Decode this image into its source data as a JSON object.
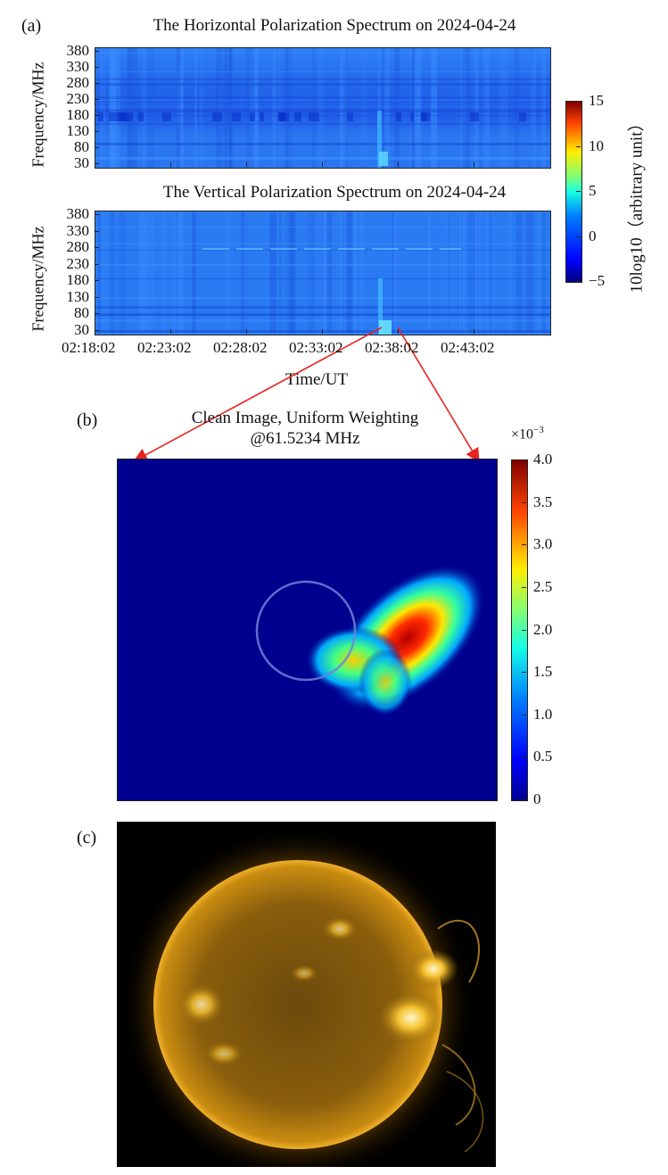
{
  "panel_labels": {
    "a": "(a)",
    "b": "(b)",
    "c": "(c)"
  },
  "panel_a": {
    "top_title": "The Horizontal Polarization Spectrum on 2024-04-24",
    "bottom_title": "The Vertical Polarization Spectrum on 2024-04-24",
    "ylabel": "Frequency/MHz",
    "xlabel": "Time/UT",
    "yticks": [
      "380",
      "330",
      "280",
      "230",
      "180",
      "130",
      "80",
      "30"
    ],
    "xticks": [
      "02:18:02",
      "02:23:02",
      "02:28:02",
      "02:33:02",
      "02:38:02",
      "02:43:02"
    ],
    "colorbar_label": "10log10（arbitrary unit）",
    "colorbar_ticks": [
      "15",
      "10",
      "5",
      "0",
      "−5"
    ],
    "colors": {
      "low": "#00008f",
      "mid": "#1e6ff0",
      "high": "#7f0000"
    }
  },
  "panel_b": {
    "title_line1": "Clean Image, Uniform Weighting",
    "title_line2": "@61.5234 MHz",
    "colorbar_multiplier": "×10",
    "colorbar_exponent": "−3",
    "colorbar_ticks": [
      "4.0",
      "3.5",
      "3.0",
      "2.5",
      "2.0",
      "1.5",
      "1.0",
      "0.5",
      "0"
    ],
    "background_color": "#00008f"
  },
  "chart_data": [
    {
      "type": "heatmap",
      "title": "The Horizontal Polarization Spectrum on 2024-04-24",
      "ylabel": "Frequency/MHz",
      "y_ticks": [
        30,
        80,
        130,
        180,
        230,
        280,
        330,
        380
      ],
      "x_ticks": [
        "02:18:02",
        "02:23:02",
        "02:28:02",
        "02:33:02",
        "02:38:02",
        "02:43:02"
      ],
      "colorbar_range": [
        -5,
        15
      ],
      "colorbar_label": "10log10（arbitrary unit）"
    },
    {
      "type": "heatmap",
      "title": "The Vertical Polarization Spectrum on 2024-04-24",
      "xlabel": "Time/UT",
      "ylabel": "Frequency/MHz",
      "y_ticks": [
        30,
        80,
        130,
        180,
        230,
        280,
        330,
        380
      ],
      "x_ticks": [
        "02:18:02",
        "02:23:02",
        "02:28:02",
        "02:33:02",
        "02:38:02",
        "02:43:02"
      ],
      "colorbar_range": [
        -5,
        15
      ]
    },
    {
      "type": "heatmap",
      "title": "Clean Image, Uniform Weighting @61.5234 MHz",
      "colorbar_range": [
        0,
        0.004
      ],
      "colorbar_ticks": [
        0,
        0.5,
        1.0,
        1.5,
        2.0,
        2.5,
        3.0,
        3.5,
        4.0
      ]
    }
  ]
}
